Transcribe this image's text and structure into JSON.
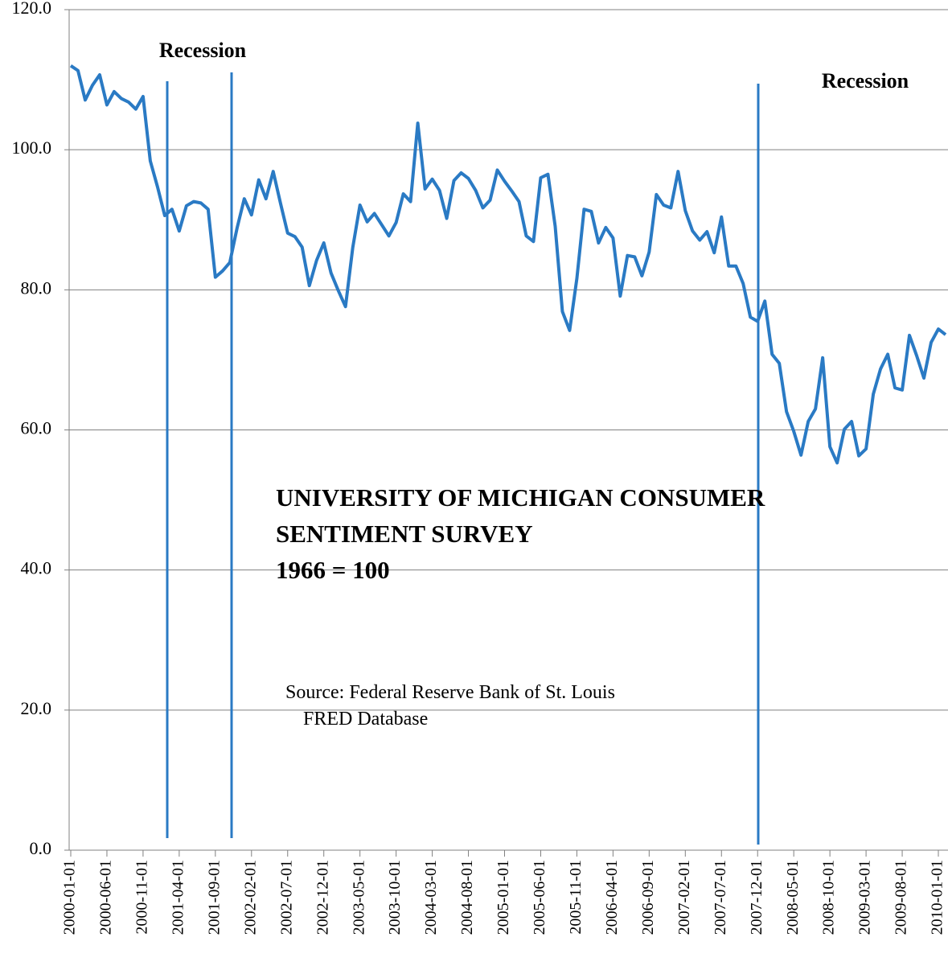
{
  "chart_data": {
    "type": "line",
    "annotations": [
      "Recession",
      "Recession",
      "UNIVERSITY OF MICHIGAN CONSUMER",
      "SENTIMENT SURVEY",
      "1966 = 100",
      "Source: Federal Reserve Bank of St. Louis",
      "FRED Database"
    ],
    "categories": [
      "2000-01-01",
      null,
      null,
      null,
      null,
      "2000-06-01",
      null,
      null,
      null,
      null,
      "2000-11-01",
      null,
      null,
      null,
      null,
      "2001-04-01",
      null,
      null,
      null,
      null,
      "2001-09-01",
      null,
      null,
      null,
      null,
      "2002-02-01",
      null,
      null,
      null,
      null,
      "2002-07-01",
      null,
      null,
      null,
      null,
      "2002-12-01",
      null,
      null,
      null,
      null,
      "2003-05-01",
      null,
      null,
      null,
      null,
      "2003-10-01",
      null,
      null,
      null,
      null,
      "2004-03-01",
      null,
      null,
      null,
      null,
      "2004-08-01",
      null,
      null,
      null,
      null,
      "2005-01-01",
      null,
      null,
      null,
      null,
      "2005-06-01",
      null,
      null,
      null,
      null,
      "2005-11-01",
      null,
      null,
      null,
      null,
      "2006-04-01",
      null,
      null,
      null,
      null,
      "2006-09-01",
      null,
      null,
      null,
      null,
      "2007-02-01",
      null,
      null,
      null,
      null,
      "2007-07-01",
      null,
      null,
      null,
      null,
      "2007-12-01",
      null,
      null,
      null,
      null,
      "2008-05-01",
      null,
      null,
      null,
      null,
      "2008-10-01",
      null,
      null,
      null,
      null,
      "2009-03-01",
      null,
      null,
      null,
      null,
      "2009-08-01",
      null,
      null,
      null,
      null,
      "2010-01-01",
      null
    ],
    "series": [
      {
        "color": "#2a7ac4",
        "values": [
          112.0,
          111.3,
          107.1,
          109.2,
          110.7,
          106.4,
          108.3,
          107.3,
          106.8,
          105.8,
          107.6,
          98.4,
          94.7,
          90.6,
          91.5,
          88.4,
          92.0,
          92.6,
          92.4,
          91.5,
          81.8,
          82.7,
          83.9,
          88.8,
          93.0,
          90.7,
          95.7,
          93.0,
          96.9,
          92.4,
          88.1,
          87.6,
          86.1,
          80.6,
          84.2,
          86.7,
          82.4,
          79.9,
          77.6,
          86.0,
          92.1,
          89.7,
          90.9,
          89.3,
          87.7,
          89.6,
          93.7,
          92.6,
          103.8,
          94.4,
          95.8,
          94.2,
          90.2,
          95.6,
          96.7,
          95.9,
          94.2,
          91.7,
          92.8,
          97.1,
          95.5,
          94.1,
          92.6,
          87.7,
          86.9,
          96.0,
          96.5,
          89.1,
          76.9,
          74.2,
          81.6,
          91.5,
          91.2,
          86.7,
          88.9,
          87.4,
          79.1,
          84.9,
          84.7,
          82.0,
          85.4,
          93.6,
          92.1,
          91.7,
          96.9,
          91.3,
          88.4,
          87.1,
          88.3,
          85.3,
          90.4,
          83.4,
          83.4,
          80.9,
          76.1,
          75.5,
          78.4,
          70.8,
          69.5,
          62.6,
          59.8,
          56.4,
          61.2,
          63.0,
          70.3,
          57.6,
          55.3,
          60.1,
          61.2,
          56.3,
          57.3,
          65.1,
          68.7,
          70.8,
          66.0,
          65.7,
          73.5,
          70.6,
          67.4,
          72.5,
          74.4,
          73.6
        ]
      }
    ],
    "ylim": [
      0,
      120
    ],
    "yticks": [
      {
        "value": 0,
        "label": "0.0"
      },
      {
        "value": 20,
        "label": "20.0"
      },
      {
        "value": 40,
        "label": "40.0"
      },
      {
        "value": 60,
        "label": "60.0"
      },
      {
        "value": 80,
        "label": "80.0"
      },
      {
        "value": 100,
        "label": "100.0"
      },
      {
        "value": 120,
        "label": "120.0"
      }
    ],
    "grid": true
  }
}
